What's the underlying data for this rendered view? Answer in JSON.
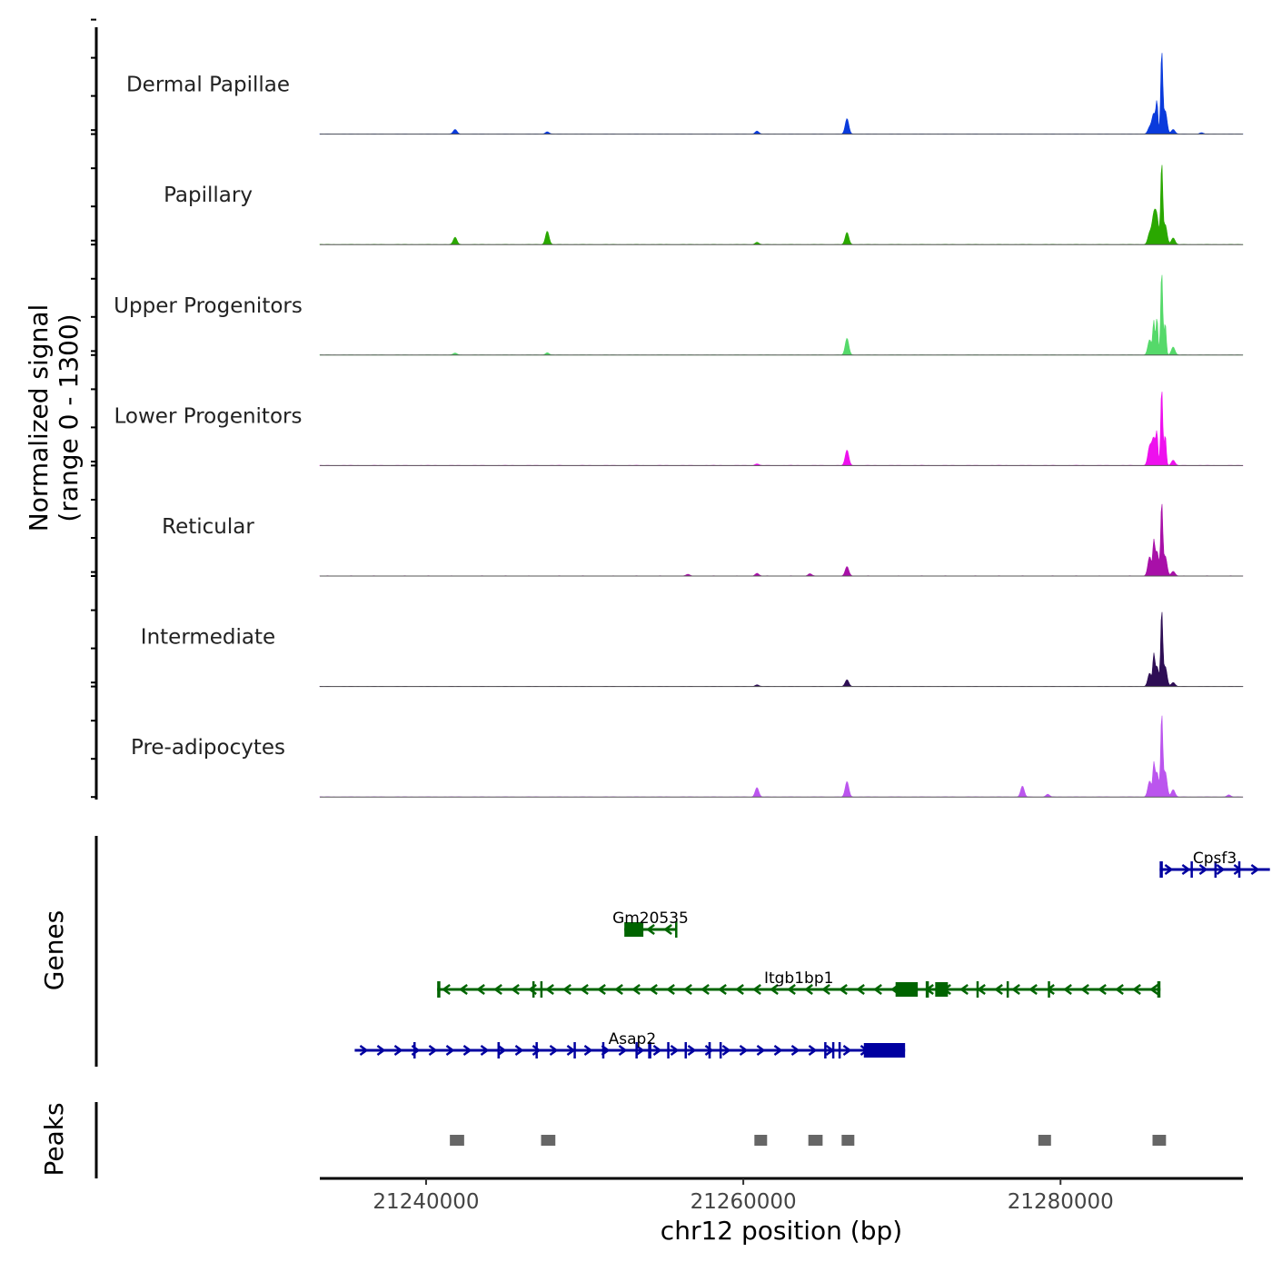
{
  "chart_data": {
    "type": "area",
    "chromosome": "chr12",
    "xlim": [
      21233300,
      21291500
    ],
    "x_ticks": [
      21240000,
      21260000,
      21280000
    ],
    "x_tick_labels": [
      "21240000",
      "21260000",
      "21280000"
    ],
    "xlabel": "chr12 position (bp)",
    "ylabel_line1": "Normalized signal",
    "ylabel_line2": "(range 0 - 1300)",
    "ylim": [
      0,
      1300
    ],
    "tracks": [
      {
        "name": "Dermal Papillae",
        "color": "#0a3bdc",
        "peaks": [
          [
            21241830,
            70
          ],
          [
            21247640,
            35
          ],
          [
            21260860,
            45
          ],
          [
            21266540,
            230
          ],
          [
            21285620,
            100
          ],
          [
            21285880,
            300
          ],
          [
            21286080,
            440
          ],
          [
            21286380,
            1200
          ],
          [
            21286600,
            350
          ],
          [
            21287100,
            70
          ],
          [
            21288900,
            20
          ]
        ]
      },
      {
        "name": "Papillary",
        "color": "#2aa800",
        "peaks": [
          [
            21241830,
            110
          ],
          [
            21247640,
            200
          ],
          [
            21260860,
            35
          ],
          [
            21266540,
            180
          ],
          [
            21285620,
            170
          ],
          [
            21285880,
            400
          ],
          [
            21286080,
            380
          ],
          [
            21286380,
            1180
          ],
          [
            21286600,
            300
          ],
          [
            21287100,
            100
          ]
        ]
      },
      {
        "name": "Upper Progenitors",
        "color": "#55d96a",
        "peaks": [
          [
            21241830,
            30
          ],
          [
            21247640,
            35
          ],
          [
            21266540,
            250
          ],
          [
            21285620,
            230
          ],
          [
            21285880,
            500
          ],
          [
            21286080,
            560
          ],
          [
            21286380,
            1260
          ],
          [
            21286600,
            480
          ],
          [
            21287100,
            120
          ]
        ]
      },
      {
        "name": "Lower Progenitors",
        "color": "#ee10ee",
        "peaks": [
          [
            21260860,
            25
          ],
          [
            21266540,
            230
          ],
          [
            21285620,
            280
          ],
          [
            21285880,
            400
          ],
          [
            21286080,
            430
          ],
          [
            21286380,
            1160
          ],
          [
            21286600,
            460
          ],
          [
            21287100,
            80
          ]
        ]
      },
      {
        "name": "Reticular",
        "color": "#a810a8",
        "peaks": [
          [
            21256500,
            25
          ],
          [
            21260860,
            40
          ],
          [
            21264200,
            35
          ],
          [
            21266540,
            140
          ],
          [
            21285620,
            290
          ],
          [
            21285880,
            450
          ],
          [
            21286080,
            370
          ],
          [
            21286380,
            1060
          ],
          [
            21286600,
            300
          ],
          [
            21287100,
            70
          ]
        ]
      },
      {
        "name": "Intermediate",
        "color": "#2e0e55",
        "peaks": [
          [
            21260860,
            25
          ],
          [
            21266540,
            100
          ],
          [
            21285620,
            200
          ],
          [
            21285880,
            420
          ],
          [
            21286080,
            300
          ],
          [
            21286380,
            1100
          ],
          [
            21286600,
            300
          ],
          [
            21287100,
            60
          ]
        ]
      },
      {
        "name": "Pre-adipocytes",
        "color": "#bb55ee",
        "peaks": [
          [
            21260860,
            140
          ],
          [
            21266540,
            230
          ],
          [
            21277600,
            160
          ],
          [
            21279200,
            40
          ],
          [
            21285620,
            240
          ],
          [
            21285880,
            430
          ],
          [
            21286080,
            370
          ],
          [
            21286380,
            1190
          ],
          [
            21286600,
            380
          ],
          [
            21287100,
            110
          ],
          [
            21290600,
            30
          ]
        ]
      }
    ],
    "genes_label": "Genes",
    "genes": [
      {
        "name": "Cpsf3",
        "strand": "+",
        "color": "#0000a0",
        "start": 21286250,
        "end": 21293200,
        "row": 0,
        "exons": [
          [
            21286250,
            21286450
          ],
          [
            21288200,
            21288260
          ],
          [
            21289700,
            21289760
          ],
          [
            21291200,
            21291260
          ]
        ]
      },
      {
        "name": "Gm20535",
        "strand": "-",
        "color": "#006400",
        "start": 21252500,
        "end": 21255800,
        "row": 1,
        "exons": [
          [
            21252500,
            21253700
          ],
          [
            21255700,
            21255800
          ]
        ]
      },
      {
        "name": "Itgb1bp1",
        "strand": "-",
        "color": "#006400",
        "start": 21240700,
        "end": 21286300,
        "row": 2,
        "exons": [
          [
            21240700,
            21240900
          ],
          [
            21246700,
            21246750
          ],
          [
            21247200,
            21247250
          ],
          [
            21269600,
            21271000
          ],
          [
            21271500,
            21271700
          ],
          [
            21272100,
            21272900
          ],
          [
            21274700,
            21274800
          ],
          [
            21276600,
            21276700
          ],
          [
            21279200,
            21279300
          ],
          [
            21286100,
            21286300
          ]
        ]
      },
      {
        "name": "Asap2",
        "strand": "+",
        "color": "#0000a0",
        "start": 21235500,
        "end": 21270200,
        "row": 3,
        "exons": [
          [
            21239200,
            21239280
          ],
          [
            21244500,
            21244650
          ],
          [
            21246900,
            21247000
          ],
          [
            21249300,
            21249380
          ],
          [
            21251100,
            21251180
          ],
          [
            21253200,
            21253280
          ],
          [
            21254000,
            21254200
          ],
          [
            21255200,
            21255280
          ],
          [
            21256300,
            21256380
          ],
          [
            21257800,
            21257950
          ],
          [
            21258500,
            21258580
          ],
          [
            21265100,
            21265180
          ],
          [
            21265600,
            21265700
          ],
          [
            21266000,
            21266080
          ],
          [
            21267600,
            21270200
          ]
        ]
      }
    ],
    "peaks_label": "Peaks",
    "peak_regions": [
      [
        21241500,
        21242400
      ],
      [
        21247250,
        21248150
      ],
      [
        21260700,
        21261500
      ],
      [
        21264100,
        21265000
      ],
      [
        21266200,
        21267000
      ],
      [
        21278600,
        21279400
      ],
      [
        21285800,
        21286650
      ]
    ]
  }
}
